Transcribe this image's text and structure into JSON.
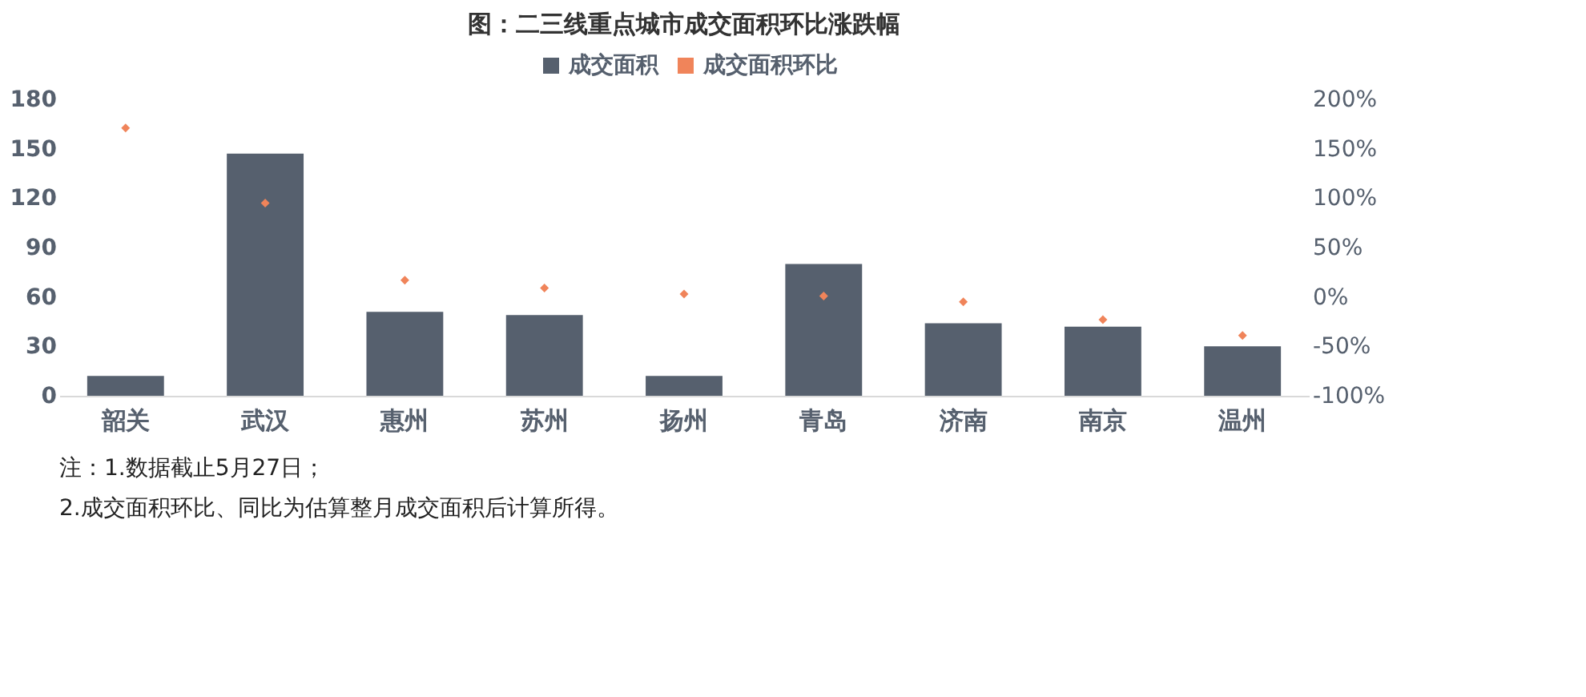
{
  "chart_data": {
    "type": "bar",
    "title": "图：二三线重点城市成交面积环比涨跌幅",
    "categories": [
      "韶关",
      "武汉",
      "惠州",
      "苏州",
      "扬州",
      "青岛",
      "济南",
      "南京",
      "温州"
    ],
    "series": [
      {
        "name": "成交面积",
        "color": "#56606e",
        "values": [
          12,
          147,
          51,
          49,
          12,
          80,
          44,
          42,
          30
        ]
      },
      {
        "name": "成交面积环比",
        "type": "scatter",
        "axis": "y2",
        "marker": "diamond",
        "color": "#f0845a",
        "values": [
          171,
          95,
          17,
          9,
          3,
          1,
          -5,
          -23,
          -39
        ]
      }
    ],
    "ylim": [
      0,
      180
    ],
    "yticks": [
      0,
      30,
      60,
      90,
      120,
      150,
      180
    ],
    "y2lim": [
      -100,
      200
    ],
    "y2ticks": [
      {
        "value": -100,
        "label": "-100%"
      },
      {
        "value": -50,
        "label": "-50%"
      },
      {
        "value": 0,
        "label": "0%"
      },
      {
        "value": 50,
        "label": "50%"
      },
      {
        "value": 100,
        "label": "100%"
      },
      {
        "value": 150,
        "label": "150%"
      },
      {
        "value": 200,
        "label": "200%"
      }
    ],
    "grid": false,
    "legend": "top",
    "annotations": [
      "注：1.数据截止5月27日；",
      "2.成交面积环比、同比为估算整月成交面积后计算所得。"
    ]
  }
}
